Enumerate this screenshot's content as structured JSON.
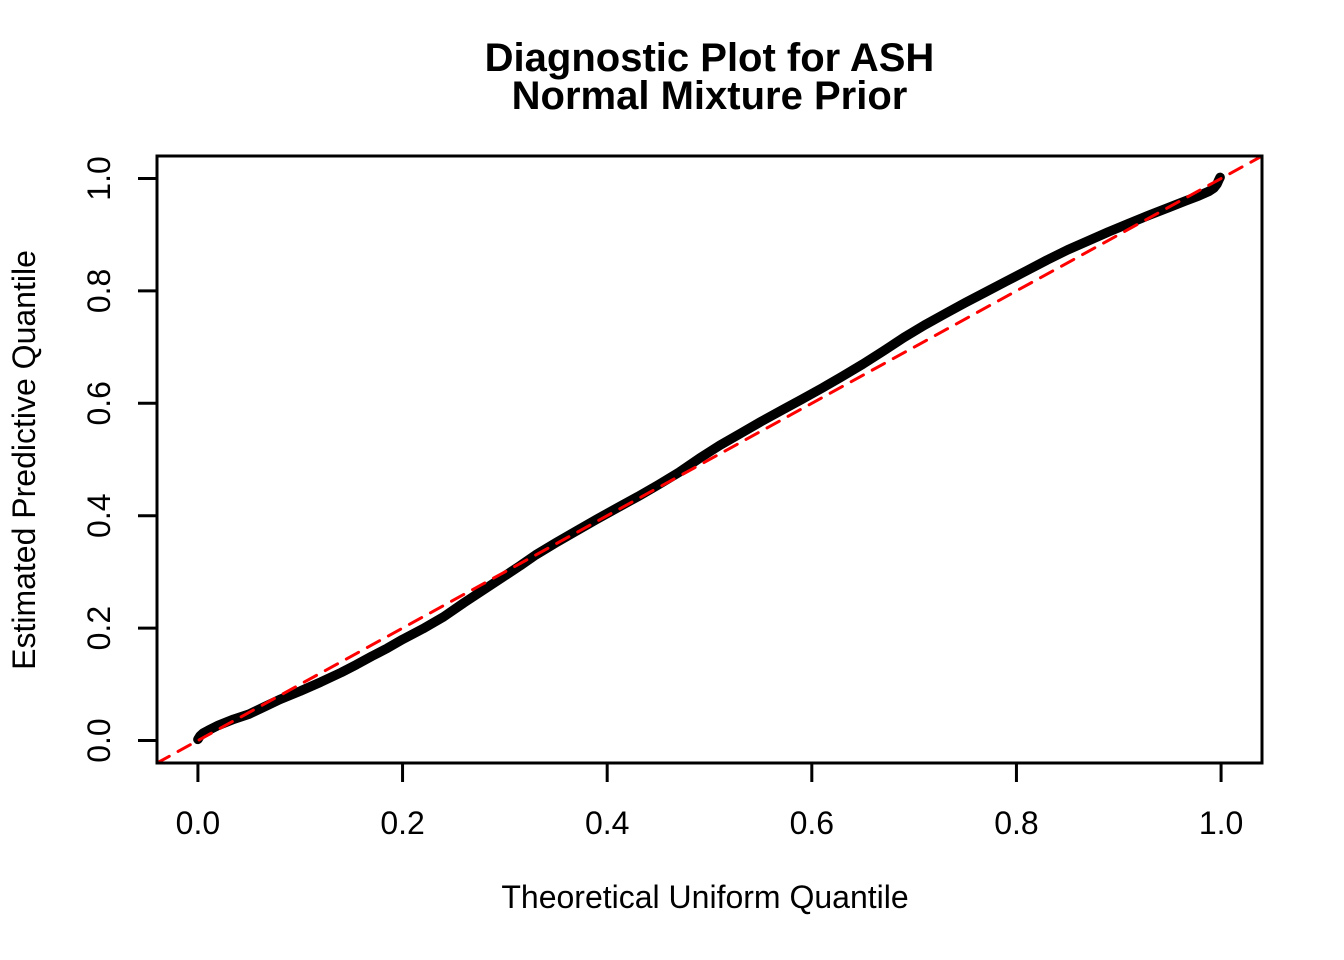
{
  "figure": {
    "background_color": "#FFFFFF",
    "curve_color": "#000000",
    "reference_line_color": "#FF0000"
  },
  "chart_data": {
    "type": "line",
    "title_line1": "Diagnostic Plot for ASH",
    "title_line2": "Normal Mixture Prior",
    "xlabel": "Theoretical Uniform Quantile",
    "ylabel": "Estimated Predictive Quantile",
    "xlim": [
      -0.04,
      1.04
    ],
    "ylim": [
      -0.04,
      1.04
    ],
    "grid": false,
    "legend_position": "none",
    "x_ticks": {
      "values": [
        0.0,
        0.2,
        0.4,
        0.6,
        0.8,
        1.0
      ],
      "labels": [
        "0.0",
        "0.2",
        "0.4",
        "0.6",
        "0.8",
        "1.0"
      ]
    },
    "y_ticks": {
      "values": [
        0.0,
        0.2,
        0.4,
        0.6,
        0.8,
        1.0
      ],
      "labels": [
        "0.0",
        "0.2",
        "0.4",
        "0.6",
        "0.8",
        "1.0"
      ]
    },
    "series": [
      {
        "name": "estimated-predictive-quantile-curve",
        "type": "line",
        "color": "#000000",
        "line_width": 9.5,
        "line_style": "solid",
        "points": [
          [
            0.0,
            0.002
          ],
          [
            0.002,
            0.008
          ],
          [
            0.005,
            0.013
          ],
          [
            0.01,
            0.018
          ],
          [
            0.02,
            0.027
          ],
          [
            0.035,
            0.038
          ],
          [
            0.05,
            0.047
          ],
          [
            0.065,
            0.06
          ],
          [
            0.08,
            0.073
          ],
          [
            0.1,
            0.088
          ],
          [
            0.12,
            0.104
          ],
          [
            0.14,
            0.121
          ],
          [
            0.155,
            0.135
          ],
          [
            0.17,
            0.15
          ],
          [
            0.185,
            0.164
          ],
          [
            0.2,
            0.18
          ],
          [
            0.22,
            0.199
          ],
          [
            0.24,
            0.22
          ],
          [
            0.26,
            0.245
          ],
          [
            0.28,
            0.269
          ],
          [
            0.3,
            0.293
          ],
          [
            0.315,
            0.311
          ],
          [
            0.33,
            0.33
          ],
          [
            0.35,
            0.352
          ],
          [
            0.37,
            0.373
          ],
          [
            0.39,
            0.394
          ],
          [
            0.41,
            0.414
          ],
          [
            0.43,
            0.434
          ],
          [
            0.45,
            0.455
          ],
          [
            0.47,
            0.477
          ],
          [
            0.49,
            0.502
          ],
          [
            0.51,
            0.525
          ],
          [
            0.53,
            0.546
          ],
          [
            0.55,
            0.567
          ],
          [
            0.57,
            0.587
          ],
          [
            0.59,
            0.607
          ],
          [
            0.61,
            0.627
          ],
          [
            0.63,
            0.648
          ],
          [
            0.65,
            0.67
          ],
          [
            0.67,
            0.693
          ],
          [
            0.69,
            0.717
          ],
          [
            0.71,
            0.739
          ],
          [
            0.73,
            0.759
          ],
          [
            0.75,
            0.779
          ],
          [
            0.77,
            0.798
          ],
          [
            0.79,
            0.817
          ],
          [
            0.81,
            0.836
          ],
          [
            0.83,
            0.855
          ],
          [
            0.85,
            0.873
          ],
          [
            0.87,
            0.889
          ],
          [
            0.89,
            0.905
          ],
          [
            0.91,
            0.92
          ],
          [
            0.93,
            0.935
          ],
          [
            0.95,
            0.949
          ],
          [
            0.965,
            0.96
          ],
          [
            0.978,
            0.969
          ],
          [
            0.988,
            0.977
          ],
          [
            0.993,
            0.983
          ],
          [
            0.996,
            0.99
          ],
          [
            0.998,
            0.998
          ],
          [
            0.999,
            1.002
          ]
        ]
      },
      {
        "name": "identity-reference-line",
        "type": "line",
        "color": "#FF0000",
        "line_width": 3,
        "line_style": "dashed",
        "points": [
          [
            -0.04,
            -0.04
          ],
          [
            1.04,
            1.04
          ]
        ]
      }
    ]
  }
}
